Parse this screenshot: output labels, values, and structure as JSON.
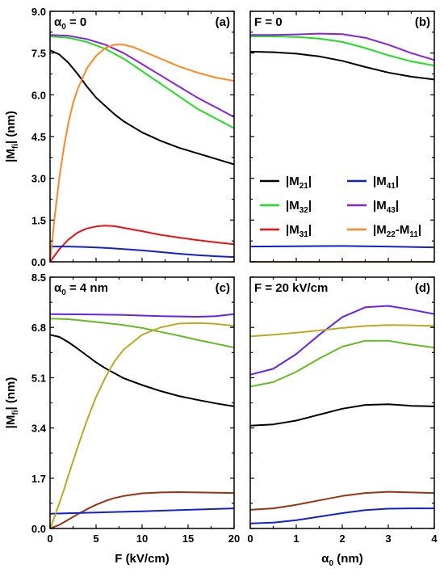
{
  "chart_data": [
    {
      "type": "line",
      "panel_label": "(a)",
      "title_main": "α",
      "title_sub": "0",
      "title_rest": " = 0",
      "xlabel": "",
      "ylabel": "|Mfi| (nm)",
      "xlim": [
        0,
        20
      ],
      "ylim": [
        0,
        9
      ],
      "xticks": [
        0,
        5,
        10,
        15,
        20
      ],
      "xticklabels": [
        "",
        "",
        "",
        "",
        ""
      ],
      "yticks": [
        0,
        1.5,
        3,
        4.5,
        6,
        7.5,
        9
      ],
      "yticklabels": [
        "0.0",
        "1.5",
        "3.0",
        "4.5",
        "6.0",
        "7.5",
        "9.0"
      ],
      "series": [
        {
          "key": "M21",
          "color": "#000000",
          "x": [
            0,
            1,
            2,
            3,
            4,
            5,
            6,
            7,
            8,
            10,
            12,
            14,
            16,
            18,
            20
          ],
          "y": [
            7.6,
            7.45,
            7.15,
            6.75,
            6.3,
            5.9,
            5.6,
            5.3,
            5.05,
            4.65,
            4.35,
            4.1,
            3.9,
            3.7,
            3.5
          ]
        },
        {
          "key": "M32",
          "color": "#22dd22",
          "x": [
            0,
            2,
            4,
            6,
            8,
            10,
            12,
            14,
            16,
            18,
            20
          ],
          "y": [
            8.1,
            8.05,
            7.9,
            7.65,
            7.3,
            6.85,
            6.4,
            5.95,
            5.5,
            5.15,
            4.8
          ]
        },
        {
          "key": "M31",
          "color": "#ee1111",
          "x": [
            0,
            1,
            2,
            3,
            4,
            5,
            6,
            7,
            8,
            10,
            12,
            14,
            16,
            18,
            20
          ],
          "y": [
            0.0,
            0.45,
            0.8,
            1.05,
            1.2,
            1.27,
            1.3,
            1.28,
            1.22,
            1.1,
            0.97,
            0.87,
            0.78,
            0.7,
            0.63
          ]
        },
        {
          "key": "M41",
          "color": "#1122cc",
          "x": [
            0,
            2,
            4,
            6,
            8,
            10,
            12,
            14,
            16,
            18,
            20
          ],
          "y": [
            0.55,
            0.55,
            0.53,
            0.5,
            0.46,
            0.41,
            0.35,
            0.29,
            0.24,
            0.2,
            0.17
          ]
        },
        {
          "key": "M43",
          "color": "#8822dd",
          "x": [
            0,
            2,
            4,
            6,
            8,
            10,
            12,
            14,
            16,
            18,
            20
          ],
          "y": [
            8.15,
            8.12,
            8.0,
            7.8,
            7.5,
            7.1,
            6.7,
            6.3,
            5.9,
            5.55,
            5.2
          ]
        },
        {
          "key": "M22M11",
          "color": "#ff8822",
          "x": [
            0,
            0.5,
            1,
            1.5,
            2,
            2.5,
            3,
            4,
            5,
            6,
            7,
            8,
            9,
            10,
            12,
            14,
            16,
            18,
            20
          ],
          "y": [
            0.0,
            1.6,
            3.0,
            4.1,
            5.0,
            5.7,
            6.2,
            6.95,
            7.4,
            7.68,
            7.8,
            7.8,
            7.72,
            7.58,
            7.3,
            7.02,
            6.8,
            6.62,
            6.5
          ]
        }
      ]
    },
    {
      "type": "line",
      "panel_label": "(b)",
      "title_main": "F = 0",
      "title_sub": "",
      "title_rest": "",
      "xlabel": "",
      "ylabel": "",
      "xlim": [
        0,
        4
      ],
      "ylim": [
        0,
        9
      ],
      "xticks": [
        0,
        1,
        2,
        3,
        4
      ],
      "xticklabels": [
        "",
        "",
        "",
        "",
        ""
      ],
      "yticks": [
        0,
        1.5,
        3,
        4.5,
        6,
        7.5,
        9
      ],
      "yticklabels": [
        "",
        "",
        "",
        "",
        "",
        "",
        ""
      ],
      "legend": {
        "placement": "center",
        "entries": [
          {
            "key": "M21",
            "text": "|M",
            "sub": "21",
            "end": "|"
          },
          {
            "key": "M41",
            "text": "|M",
            "sub": "41",
            "end": "|"
          },
          {
            "key": "M32",
            "text": "|M",
            "sub": "32",
            "end": "|"
          },
          {
            "key": "M43",
            "text": "|M",
            "sub": "43",
            "end": "|"
          },
          {
            "key": "M31",
            "text": "|M",
            "sub": "31",
            "end": "|"
          },
          {
            "key": "M22M11",
            "text": "|M",
            "sub": "22",
            "mid": "-M",
            "sub2": "11",
            "end": "|"
          }
        ]
      },
      "series": [
        {
          "key": "M21",
          "color": "#000000",
          "x": [
            0,
            0.5,
            1,
            1.5,
            2,
            2.5,
            3,
            3.5,
            4
          ],
          "y": [
            7.55,
            7.53,
            7.48,
            7.38,
            7.22,
            7.0,
            6.8,
            6.65,
            6.55
          ]
        },
        {
          "key": "M32",
          "color": "#22dd22",
          "x": [
            0,
            0.5,
            1,
            1.5,
            2,
            2.5,
            3,
            3.5,
            4
          ],
          "y": [
            8.1,
            8.1,
            8.08,
            8.02,
            7.9,
            7.68,
            7.42,
            7.2,
            7.05
          ]
        },
        {
          "key": "M31",
          "color": "#ee1111",
          "x": [
            0,
            4
          ],
          "y": [
            0.0,
            0.0
          ]
        },
        {
          "key": "M41",
          "color": "#1122cc",
          "x": [
            0,
            1,
            2,
            3,
            4
          ],
          "y": [
            0.55,
            0.56,
            0.57,
            0.55,
            0.52
          ]
        },
        {
          "key": "M43",
          "color": "#8822dd",
          "x": [
            0,
            0.5,
            1,
            1.5,
            2,
            2.5,
            3,
            3.5,
            4
          ],
          "y": [
            8.15,
            8.15,
            8.17,
            8.2,
            8.18,
            8.05,
            7.8,
            7.5,
            7.25
          ]
        },
        {
          "key": "M22M11",
          "color": "#ff8822",
          "x": [
            0,
            4
          ],
          "y": [
            0.0,
            0.0
          ]
        }
      ]
    },
    {
      "type": "line",
      "panel_label": "(c)",
      "title_main": "α",
      "title_sub": "0",
      "title_rest": " = 4 nm",
      "xlabel": "F (kV/cm)",
      "ylabel": "|Mfi| (nm)",
      "xlim": [
        0,
        20
      ],
      "ylim": [
        0,
        8.5
      ],
      "xticks": [
        0,
        5,
        10,
        15,
        20
      ],
      "xticklabels": [
        "0",
        "5",
        "10",
        "15",
        "20"
      ],
      "yticks": [
        0,
        1.7,
        3.4,
        5.1,
        6.8,
        8.5
      ],
      "yticklabels": [
        "0.0",
        "1.7",
        "3.4",
        "5.1",
        "6.8",
        "8.5"
      ],
      "series": [
        {
          "key": "M21",
          "color": "#000000",
          "x": [
            0,
            1,
            2,
            3,
            4,
            5,
            6,
            7,
            8,
            10,
            12,
            14,
            16,
            18,
            20
          ],
          "y": [
            6.55,
            6.48,
            6.3,
            6.08,
            5.85,
            5.62,
            5.42,
            5.25,
            5.08,
            4.85,
            4.65,
            4.48,
            4.35,
            4.23,
            4.13
          ]
        },
        {
          "key": "M32",
          "color": "#66bb22",
          "x": [
            0,
            2,
            4,
            6,
            8,
            10,
            12,
            14,
            16,
            18,
            20
          ],
          "y": [
            7.1,
            7.08,
            7.02,
            6.95,
            6.88,
            6.78,
            6.65,
            6.52,
            6.38,
            6.25,
            6.12
          ]
        },
        {
          "key": "M31",
          "color": "#993311",
          "x": [
            0,
            1,
            2,
            3,
            4,
            5,
            6,
            7,
            8,
            10,
            12,
            14,
            16,
            18,
            20
          ],
          "y": [
            0.0,
            0.12,
            0.3,
            0.48,
            0.65,
            0.8,
            0.93,
            1.03,
            1.1,
            1.19,
            1.22,
            1.23,
            1.22,
            1.21,
            1.2
          ]
        },
        {
          "key": "M41",
          "color": "#1122cc",
          "x": [
            0,
            5,
            10,
            15,
            20
          ],
          "y": [
            0.5,
            0.54,
            0.58,
            0.63,
            0.68
          ]
        },
        {
          "key": "M43",
          "color": "#6622ee",
          "x": [
            0,
            4,
            8,
            12,
            16,
            18,
            20
          ],
          "y": [
            7.25,
            7.24,
            7.22,
            7.18,
            7.16,
            7.18,
            7.25
          ]
        },
        {
          "key": "M22M11",
          "color": "#bbaa22",
          "x": [
            0,
            0.5,
            1,
            1.5,
            2,
            3,
            4,
            5,
            6,
            7,
            8,
            10,
            12,
            14,
            16,
            18,
            20
          ],
          "y": [
            0.0,
            0.4,
            0.85,
            1.3,
            1.8,
            2.75,
            3.65,
            4.45,
            5.1,
            5.65,
            6.05,
            6.55,
            6.8,
            6.93,
            6.95,
            6.92,
            6.85
          ]
        }
      ]
    },
    {
      "type": "line",
      "panel_label": "(d)",
      "title_main": "F = 20 kV/cm",
      "title_sub": "",
      "title_rest": "",
      "xlabel": "α0 (nm)",
      "ylabel": "",
      "xlim": [
        0,
        4
      ],
      "ylim": [
        0,
        8.5
      ],
      "xticks": [
        0,
        1,
        2,
        3,
        4
      ],
      "xticklabels": [
        "0",
        "1",
        "2",
        "3",
        "4"
      ],
      "yticks": [
        0,
        1.7,
        3.4,
        5.1,
        6.8,
        8.5
      ],
      "yticklabels": [
        "",
        "",
        "",
        "",
        "",
        ""
      ],
      "series": [
        {
          "key": "M21",
          "color": "#000000",
          "x": [
            0,
            0.5,
            1,
            1.5,
            2,
            2.5,
            3,
            3.5,
            4
          ],
          "y": [
            3.48,
            3.52,
            3.65,
            3.85,
            4.05,
            4.18,
            4.2,
            4.15,
            4.13
          ]
        },
        {
          "key": "M32",
          "color": "#66bb22",
          "x": [
            0,
            0.5,
            1,
            1.5,
            2,
            2.5,
            3,
            3.5,
            4
          ],
          "y": [
            4.8,
            4.95,
            5.3,
            5.75,
            6.15,
            6.35,
            6.35,
            6.22,
            6.12
          ]
        },
        {
          "key": "M31",
          "color": "#993311",
          "x": [
            0,
            0.5,
            1,
            1.5,
            2,
            2.5,
            3,
            3.5,
            4
          ],
          "y": [
            0.63,
            0.68,
            0.8,
            0.95,
            1.1,
            1.2,
            1.24,
            1.22,
            1.2
          ]
        },
        {
          "key": "M41",
          "color": "#1122cc",
          "x": [
            0,
            0.5,
            1,
            1.5,
            2,
            2.5,
            3,
            3.5,
            4
          ],
          "y": [
            0.17,
            0.2,
            0.28,
            0.4,
            0.52,
            0.62,
            0.67,
            0.68,
            0.68
          ]
        },
        {
          "key": "M43",
          "color": "#6622ee",
          "x": [
            0,
            0.5,
            1,
            1.5,
            2,
            2.5,
            3,
            3.5,
            4
          ],
          "y": [
            5.2,
            5.4,
            5.9,
            6.55,
            7.15,
            7.48,
            7.53,
            7.4,
            7.25
          ]
        },
        {
          "key": "M22M11",
          "color": "#bbaa22",
          "x": [
            0,
            0.5,
            1,
            1.5,
            2,
            2.5,
            3,
            3.5,
            4
          ],
          "y": [
            6.5,
            6.55,
            6.62,
            6.7,
            6.78,
            6.85,
            6.88,
            6.87,
            6.85
          ]
        }
      ]
    }
  ]
}
